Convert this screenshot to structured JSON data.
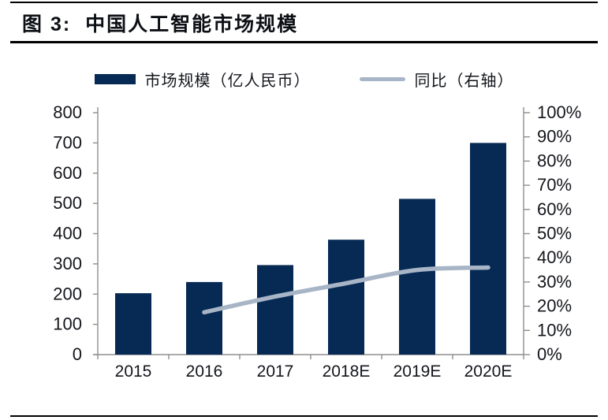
{
  "header": {
    "title": "图 3:  中国人工智能市场规模"
  },
  "legend": {
    "bar_label": "市场规模（亿人民币）",
    "line_label": "同比（右轴）"
  },
  "colors": {
    "bar": "#072a54",
    "line": "#a7b5c6",
    "axis": "#8f8f8f",
    "text": "#14161c",
    "rule": "#000000"
  },
  "chart_data": {
    "type": "bar+line combo",
    "title": "图 3: 中国人工智能市场规模",
    "categories": [
      "2015",
      "2016",
      "2017",
      "2018E",
      "2019E",
      "2020E"
    ],
    "series": [
      {
        "name": "市场规模（亿人民币）",
        "type": "bar",
        "axis": "left",
        "color": "#072a54",
        "values": [
          203,
          240,
          296,
          380,
          515,
          700
        ]
      },
      {
        "name": "同比（右轴）",
        "type": "line",
        "axis": "right",
        "color": "#a7b5c6",
        "unit": "%",
        "values": [
          null,
          17.5,
          24,
          29.5,
          35,
          36
        ]
      }
    ],
    "left_axis": {
      "min": 0,
      "max": 800,
      "step": 100,
      "tick_labels": [
        "0",
        "100",
        "200",
        "300",
        "400",
        "500",
        "600",
        "700",
        "800"
      ]
    },
    "right_axis": {
      "min": 0,
      "max": 100,
      "step": 10,
      "format": "percent",
      "tick_labels": [
        "0%",
        "10%",
        "20%",
        "30%",
        "40%",
        "50%",
        "60%",
        "70%",
        "80%",
        "90%",
        "100%"
      ]
    },
    "grid": false,
    "legend_position": "top"
  }
}
